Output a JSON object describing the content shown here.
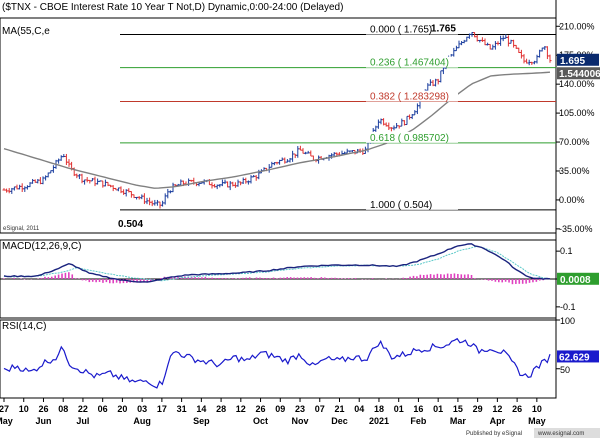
{
  "chart_data": {
    "type": "line",
    "price_pane": {
      "title": "($TNX - CBOE Interest Rate 10 Year T Not,D) Dynamic,0:00-24:00 (Delayed)",
      "ma_label": "MA(55,C,e",
      "copyright": "eSignal, 2011",
      "ylim": [
        -0.4,
        2.2
      ],
      "y_ticks": [
        {
          "v": 2.1,
          "label": "210.00%"
        },
        {
          "v": 1.75,
          "label": "175.00%"
        },
        {
          "v": 1.4,
          "label": "140.00%"
        },
        {
          "v": 1.05,
          "label": "105.00%"
        },
        {
          "v": 0.7,
          "label": "70.00%"
        },
        {
          "v": 0.35,
          "label": "35.00%"
        },
        {
          "v": 0.0,
          "label": "0.00%"
        },
        {
          "v": -0.35,
          "label": "-35.00%"
        }
      ],
      "last_price": {
        "value": 1.695,
        "label": "1.695"
      },
      "last_ma": {
        "value": 1.544006,
        "label": "1.544006"
      },
      "high_label": {
        "text": "1.765",
        "t": 69,
        "v": 1.765
      },
      "low_label": {
        "text": "0.504",
        "t": 24,
        "v": 0.0
      },
      "fib_levels": [
        {
          "v": 2.0,
          "label": "0.000 ( 1.765)",
          "color": "#000000"
        },
        {
          "v": 1.6,
          "label": "0.236 ( 1.467404)",
          "color": "#2e9e2e"
        },
        {
          "v": 1.19,
          "label": "0.382 ( 1.283298)",
          "color": "#c0392b"
        },
        {
          "v": 0.69,
          "label": "0.618 ( 0.985702)",
          "color": "#2e9e2e"
        },
        {
          "v": -0.12,
          "label": "1.000 ( 0.504)",
          "color": "#000000"
        }
      ],
      "price_anchors": [
        [
          0,
          0.12
        ],
        [
          3,
          0.17
        ],
        [
          6,
          0.24
        ],
        [
          8,
          0.45
        ],
        [
          9,
          0.56
        ],
        [
          10,
          0.38
        ],
        [
          12,
          0.25
        ],
        [
          15,
          0.2
        ],
        [
          18,
          0.12
        ],
        [
          20,
          0.05
        ],
        [
          22,
          -0.02
        ],
        [
          23,
          -0.06
        ],
        [
          24,
          -0.06
        ],
        [
          25,
          0.12
        ],
        [
          27,
          0.2
        ],
        [
          30,
          0.22
        ],
        [
          33,
          0.18
        ],
        [
          36,
          0.2
        ],
        [
          39,
          0.32
        ],
        [
          41,
          0.45
        ],
        [
          43,
          0.5
        ],
        [
          45,
          0.6
        ],
        [
          47,
          0.5
        ],
        [
          50,
          0.55
        ],
        [
          53,
          0.58
        ],
        [
          55,
          0.6
        ],
        [
          57,
          0.98
        ],
        [
          59,
          0.88
        ],
        [
          61,
          0.95
        ],
        [
          63,
          1.15
        ],
        [
          64,
          1.35
        ],
        [
          66,
          1.45
        ],
        [
          67,
          1.65
        ],
        [
          69,
          1.85
        ],
        [
          71,
          2.05
        ],
        [
          72,
          1.95
        ],
        [
          74,
          1.82
        ],
        [
          76,
          1.97
        ],
        [
          77,
          1.9
        ],
        [
          79,
          1.68
        ],
        [
          81,
          1.7
        ],
        [
          82,
          1.9
        ],
        [
          83,
          1.695
        ]
      ],
      "ma_anchors": [
        [
          0,
          0.62
        ],
        [
          5,
          0.5
        ],
        [
          10,
          0.38
        ],
        [
          15,
          0.28
        ],
        [
          20,
          0.18
        ],
        [
          23,
          0.14
        ],
        [
          26,
          0.16
        ],
        [
          30,
          0.22
        ],
        [
          35,
          0.28
        ],
        [
          40,
          0.36
        ],
        [
          45,
          0.45
        ],
        [
          50,
          0.52
        ],
        [
          55,
          0.6
        ],
        [
          58,
          0.68
        ],
        [
          62,
          0.84
        ],
        [
          65,
          1.02
        ],
        [
          68,
          1.22
        ],
        [
          71,
          1.4
        ],
        [
          74,
          1.5
        ],
        [
          77,
          1.52
        ],
        [
          80,
          1.53
        ],
        [
          83,
          1.544
        ]
      ]
    },
    "macd_pane": {
      "title": "MACD(12,26,9,C)",
      "ylim": [
        -0.14,
        0.14
      ],
      "y_ticks": [
        {
          "v": 0.1,
          "label": "0.1"
        },
        {
          "v": 0.0,
          "label": "0"
        },
        {
          "v": -0.1,
          "label": "-0.1"
        }
      ],
      "last_value": {
        "value": 0.0008,
        "label": "0.0008"
      },
      "macd_anchors": [
        [
          0,
          0.01
        ],
        [
          5,
          0.01
        ],
        [
          8,
          0.035
        ],
        [
          10,
          0.055
        ],
        [
          13,
          0.02
        ],
        [
          18,
          -0.005
        ],
        [
          22,
          -0.012
        ],
        [
          25,
          0.005
        ],
        [
          28,
          0.015
        ],
        [
          32,
          0.018
        ],
        [
          36,
          0.022
        ],
        [
          40,
          0.03
        ],
        [
          45,
          0.045
        ],
        [
          50,
          0.05
        ],
        [
          55,
          0.05
        ],
        [
          60,
          0.045
        ],
        [
          63,
          0.065
        ],
        [
          66,
          0.09
        ],
        [
          69,
          0.12
        ],
        [
          71,
          0.125
        ],
        [
          73,
          0.11
        ],
        [
          76,
          0.07
        ],
        [
          78,
          0.03
        ],
        [
          80,
          0.005
        ],
        [
          82,
          0.001
        ],
        [
          83,
          0.0008
        ]
      ],
      "signal_anchors": [
        [
          0,
          0.008
        ],
        [
          5,
          0.01
        ],
        [
          9,
          0.025
        ],
        [
          11,
          0.04
        ],
        [
          15,
          0.022
        ],
        [
          20,
          0.003
        ],
        [
          24,
          -0.006
        ],
        [
          27,
          0.005
        ],
        [
          32,
          0.014
        ],
        [
          36,
          0.019
        ],
        [
          40,
          0.026
        ],
        [
          45,
          0.038
        ],
        [
          50,
          0.046
        ],
        [
          55,
          0.049
        ],
        [
          60,
          0.046
        ],
        [
          63,
          0.052
        ],
        [
          66,
          0.072
        ],
        [
          69,
          0.1
        ],
        [
          72,
          0.118
        ],
        [
          75,
          0.095
        ],
        [
          78,
          0.05
        ],
        [
          80,
          0.018
        ],
        [
          82,
          0.004
        ],
        [
          83,
          0.001
        ]
      ]
    },
    "rsi_pane": {
      "title": "RSI(14,C)",
      "ylim": [
        20,
        100
      ],
      "y_ticks": [
        {
          "v": 100,
          "label": "100"
        },
        {
          "v": 50,
          "label": "50"
        }
      ],
      "last_value": {
        "value": 62.629,
        "label": "62.629"
      },
      "rsi_anchors": [
        [
          0,
          48
        ],
        [
          2,
          53
        ],
        [
          4,
          46
        ],
        [
          6,
          56
        ],
        [
          8,
          62
        ],
        [
          9,
          72
        ],
        [
          10,
          55
        ],
        [
          12,
          48
        ],
        [
          14,
          42
        ],
        [
          16,
          45
        ],
        [
          18,
          40
        ],
        [
          20,
          36
        ],
        [
          22,
          38
        ],
        [
          23,
          33
        ],
        [
          24,
          35
        ],
        [
          25,
          58
        ],
        [
          26,
          68
        ],
        [
          28,
          62
        ],
        [
          30,
          58
        ],
        [
          33,
          54
        ],
        [
          35,
          62
        ],
        [
          37,
          58
        ],
        [
          39,
          66
        ],
        [
          41,
          63
        ],
        [
          43,
          58
        ],
        [
          45,
          65
        ],
        [
          47,
          52
        ],
        [
          49,
          60
        ],
        [
          51,
          58
        ],
        [
          53,
          62
        ],
        [
          55,
          60
        ],
        [
          56,
          68
        ],
        [
          57,
          78
        ],
        [
          59,
          62
        ],
        [
          61,
          65
        ],
        [
          63,
          70
        ],
        [
          65,
          72
        ],
        [
          67,
          74
        ],
        [
          69,
          80
        ],
        [
          71,
          76
        ],
        [
          72,
          68
        ],
        [
          74,
          72
        ],
        [
          76,
          66
        ],
        [
          77,
          58
        ],
        [
          78,
          50
        ],
        [
          79,
          42
        ],
        [
          80,
          44
        ],
        [
          81,
          52
        ],
        [
          82,
          56
        ],
        [
          83,
          62.6
        ]
      ]
    },
    "x_axis": {
      "ticks": [
        {
          "t": 0,
          "label": "27"
        },
        {
          "t": 3,
          "label": "10"
        },
        {
          "t": 6,
          "label": "26"
        },
        {
          "t": 9,
          "label": "08"
        },
        {
          "t": 12,
          "label": "22"
        },
        {
          "t": 15,
          "label": "06"
        },
        {
          "t": 18,
          "label": "20"
        },
        {
          "t": 21,
          "label": "03"
        },
        {
          "t": 24,
          "label": "17"
        },
        {
          "t": 27,
          "label": "31"
        },
        {
          "t": 30,
          "label": "14"
        },
        {
          "t": 33,
          "label": "28"
        },
        {
          "t": 36,
          "label": "12"
        },
        {
          "t": 39,
          "label": "26"
        },
        {
          "t": 42,
          "label": "09"
        },
        {
          "t": 45,
          "label": "23"
        },
        {
          "t": 48,
          "label": "07"
        },
        {
          "t": 51,
          "label": "21"
        },
        {
          "t": 54,
          "label": "04"
        },
        {
          "t": 57,
          "label": "18"
        },
        {
          "t": 60,
          "label": "01"
        },
        {
          "t": 63,
          "label": "16"
        },
        {
          "t": 66,
          "label": "01"
        },
        {
          "t": 69,
          "label": "15"
        },
        {
          "t": 72,
          "label": "29"
        },
        {
          "t": 75,
          "label": "12"
        },
        {
          "t": 78,
          "label": "26"
        },
        {
          "t": 81,
          "label": "10"
        }
      ],
      "months": [
        {
          "t": 0,
          "label": "May"
        },
        {
          "t": 6,
          "label": "Jun"
        },
        {
          "t": 12,
          "label": "Jul"
        },
        {
          "t": 21,
          "label": "Aug"
        },
        {
          "t": 30,
          "label": "Sep"
        },
        {
          "t": 39,
          "label": "Oct"
        },
        {
          "t": 45,
          "label": "Nov"
        },
        {
          "t": 51,
          "label": "Dec"
        },
        {
          "t": 57,
          "label": "2021"
        },
        {
          "t": 63,
          "label": "Feb"
        },
        {
          "t": 69,
          "label": "Mar"
        },
        {
          "t": 75,
          "label": "Apr"
        },
        {
          "t": 81,
          "label": "May"
        }
      ],
      "t_range": [
        0,
        83
      ]
    },
    "footer": {
      "text": "Published by eSignal",
      "site": "www.esignal.com"
    },
    "colors": {
      "up_bar": "#1a3d9e",
      "down_bar": "#e03030",
      "ma_line": "#808080",
      "macd_line": "#1a237e",
      "signal_line": "#5cc9c9",
      "histogram": "#e040c0",
      "rsi_line": "#1a1acc",
      "last_price_bg": "#0a2a6e",
      "last_ma_bg": "#5a5a5a",
      "macd_last_bg": "#2e9e2e",
      "rsi_last_bg": "#1a1acc"
    }
  }
}
